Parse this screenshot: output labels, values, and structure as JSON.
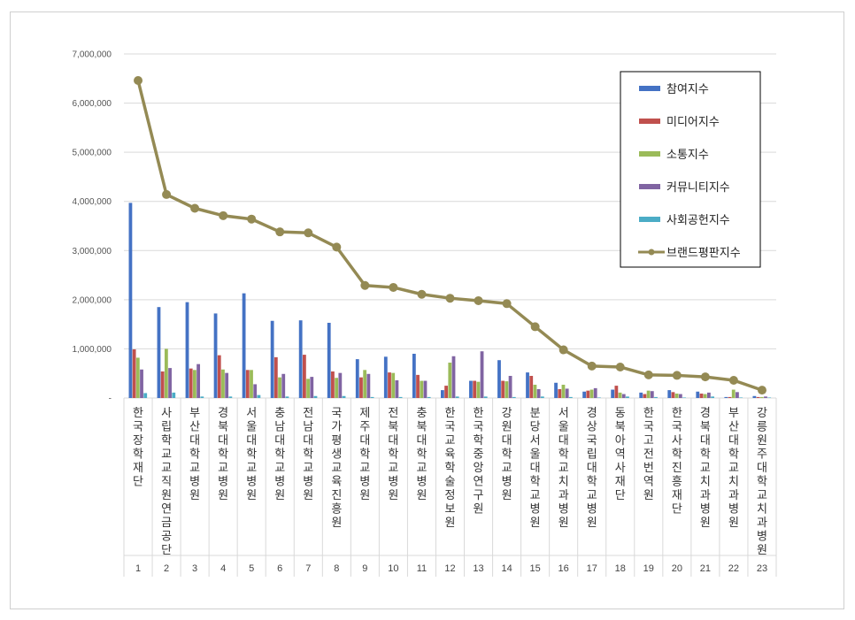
{
  "chart_data": {
    "type": "bar",
    "yticks": [
      "-",
      "1,000,000",
      "2,000,000",
      "3,000,000",
      "4,000,000",
      "5,000,000",
      "6,000,000",
      "7,000,000"
    ],
    "ylim": [
      0,
      7000000
    ],
    "grid": true,
    "legend_position": "top-right",
    "categories": [
      "한국장학재단",
      "사립학교교직원연금공단",
      "부산대학교병원",
      "경북대학교병원",
      "서울대학교병원",
      "충남대학교병원",
      "전남대학교병원",
      "국가평생교육진흥원",
      "제주대학교병원",
      "전북대학교병원",
      "충북대학교병원",
      "한국교육학술정보원",
      "한국학중앙연구원",
      "강원대학교병원",
      "분당서울대학교병원",
      "서울대학교치과병원",
      "경상국립대학교병원",
      "동북아역사재단",
      "한국고전번역원",
      "한국사학진흥재단",
      "경북대학교치과병원",
      "부산대학교치과병원",
      "강릉원주대학교치과병원"
    ],
    "ranks": [
      "1",
      "2",
      "3",
      "4",
      "5",
      "6",
      "7",
      "8",
      "9",
      "10",
      "11",
      "12",
      "13",
      "14",
      "15",
      "16",
      "17",
      "18",
      "19",
      "20",
      "21",
      "22",
      "23"
    ],
    "series": [
      {
        "name": "참여지수",
        "type": "bar",
        "color": "#4472c4",
        "values": [
          3970000,
          1850000,
          1950000,
          1720000,
          2130000,
          1570000,
          1580000,
          1530000,
          790000,
          840000,
          900000,
          160000,
          350000,
          770000,
          520000,
          310000,
          130000,
          170000,
          110000,
          160000,
          130000,
          20000,
          40000
        ]
      },
      {
        "name": "미디어지수",
        "type": "bar",
        "color": "#c0504d",
        "values": [
          990000,
          540000,
          600000,
          870000,
          570000,
          830000,
          880000,
          540000,
          420000,
          520000,
          470000,
          250000,
          350000,
          350000,
          450000,
          180000,
          150000,
          250000,
          80000,
          120000,
          90000,
          20000,
          20000
        ]
      },
      {
        "name": "소통지수",
        "type": "bar",
        "color": "#9bbb59",
        "values": [
          820000,
          1000000,
          570000,
          580000,
          570000,
          420000,
          390000,
          410000,
          570000,
          510000,
          350000,
          720000,
          330000,
          340000,
          270000,
          270000,
          170000,
          110000,
          150000,
          90000,
          80000,
          170000,
          20000
        ]
      },
      {
        "name": "커뮤니티지수",
        "type": "bar",
        "color": "#8064a2",
        "values": [
          580000,
          610000,
          690000,
          510000,
          280000,
          490000,
          430000,
          510000,
          490000,
          360000,
          350000,
          850000,
          950000,
          450000,
          180000,
          190000,
          200000,
          80000,
          140000,
          80000,
          110000,
          120000,
          30000
        ]
      },
      {
        "name": "사회공헌지수",
        "type": "bar",
        "color": "#4bacc6",
        "values": [
          100000,
          110000,
          30000,
          30000,
          60000,
          30000,
          40000,
          40000,
          20000,
          20000,
          20000,
          30000,
          30000,
          20000,
          30000,
          20000,
          10000,
          30000,
          20000,
          10000,
          30000,
          10000,
          10000
        ]
      },
      {
        "name": "브랜드평판지수",
        "type": "line",
        "color": "#948a54",
        "values": [
          6460000,
          4140000,
          3860000,
          3710000,
          3640000,
          3380000,
          3360000,
          3070000,
          2290000,
          2250000,
          2110000,
          2030000,
          1980000,
          1920000,
          1450000,
          980000,
          650000,
          630000,
          470000,
          460000,
          430000,
          360000,
          160000
        ]
      }
    ]
  }
}
